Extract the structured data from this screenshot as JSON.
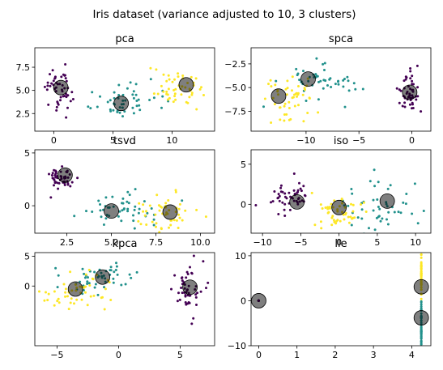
{
  "figure": {
    "title": "Iris dataset (variance adjusted to 10, 3 clusters)",
    "colors": {
      "c0": "#440154",
      "c1": "#21918c",
      "c2": "#fde725",
      "center": "#000000"
    }
  },
  "chart_data": [
    {
      "type": "scatter",
      "title": "pca",
      "xlim": [
        -1.6,
        13.6
      ],
      "ylim": [
        0.6,
        9.6
      ],
      "xticks": [
        0,
        5,
        10
      ],
      "yticks": [
        2.5,
        5.0,
        7.5
      ],
      "xtick_labels": [
        "0",
        "5",
        "10"
      ],
      "ytick_labels": [
        "2.5",
        "5.0",
        "7.5"
      ],
      "clusters": [
        {
          "center": [
            0.5,
            5.2
          ],
          "spread": [
            0.55,
            1.25
          ],
          "count": 50
        },
        {
          "center": [
            5.5,
            3.8
          ],
          "spread": [
            1.6,
            0.9
          ],
          "count": 50
        },
        {
          "center": [
            10.2,
            5.4
          ],
          "spread": [
            1.3,
            1.0
          ],
          "count": 50
        }
      ],
      "centers": [
        [
          0.6,
          5.3
        ],
        [
          5.7,
          3.6
        ],
        [
          11.2,
          5.6
        ]
      ]
    },
    {
      "type": "scatter",
      "title": "spca",
      "xlim": [
        -15.2,
        1.8
      ],
      "ylim": [
        -9.6,
        -0.8
      ],
      "xticks": [
        -10,
        -5,
        0
      ],
      "yticks": [
        -7.5,
        -5.0,
        -2.5
      ],
      "xtick_labels": [
        "−10",
        "−5",
        "0"
      ],
      "ytick_labels": [
        "−7.5",
        "−5.0",
        "−2.5"
      ],
      "clusters": [
        {
          "center": [
            -0.3,
            -5.6
          ],
          "spread": [
            0.5,
            1.2
          ],
          "count": 50
        },
        {
          "center": [
            -8.8,
            -4.6
          ],
          "spread": [
            1.6,
            0.9
          ],
          "count": 50
        },
        {
          "center": [
            -11.8,
            -6.2
          ],
          "spread": [
            1.3,
            1.1
          ],
          "count": 50
        }
      ],
      "centers": [
        [
          -0.2,
          -5.5
        ],
        [
          -9.8,
          -4.1
        ],
        [
          -12.6,
          -5.9
        ]
      ]
    },
    {
      "type": "scatter",
      "title": "tsvd",
      "xlim": [
        0.7,
        10.8
      ],
      "ylim": [
        -2.6,
        5.3
      ],
      "xticks": [
        2.5,
        5.0,
        7.5,
        10.0
      ],
      "yticks": [
        0,
        5
      ],
      "xtick_labels": [
        "2.5",
        "5.0",
        "7.5",
        "10.0"
      ],
      "ytick_labels": [
        "0",
        "5"
      ],
      "clusters": [
        {
          "center": [
            2.2,
            2.7
          ],
          "spread": [
            0.4,
            0.55
          ],
          "count": 50
        },
        {
          "center": [
            5.6,
            -0.4
          ],
          "spread": [
            1.1,
            0.8
          ],
          "count": 50
        },
        {
          "center": [
            8.2,
            -0.6
          ],
          "spread": [
            0.9,
            0.9
          ],
          "count": 50
        }
      ],
      "centers": [
        [
          2.4,
          2.9
        ],
        [
          5.0,
          -0.5
        ],
        [
          8.3,
          -0.6
        ]
      ]
    },
    {
      "type": "scatter",
      "title": "iso",
      "xlim": [
        -11.5,
        12.0
      ],
      "ylim": [
        -3.6,
        6.8
      ],
      "xticks": [
        -10,
        -5,
        0,
        5,
        10
      ],
      "yticks": [
        0,
        5
      ],
      "xtick_labels": [
        "−10",
        "−5",
        "0",
        "5",
        "10"
      ],
      "ytick_labels": [
        "0",
        "5"
      ],
      "clusters": [
        {
          "center": [
            -6.5,
            0.9
          ],
          "spread": [
            1.6,
            1.0
          ],
          "count": 50
        },
        {
          "center": [
            5.5,
            -0.4
          ],
          "spread": [
            2.3,
            1.6
          ],
          "count": 50
        },
        {
          "center": [
            -0.5,
            -0.7
          ],
          "spread": [
            1.8,
            1.1
          ],
          "count": 50
        }
      ],
      "centers": [
        [
          -5.5,
          0.3
        ],
        [
          6.3,
          0.4
        ],
        [
          0.0,
          -0.4
        ]
      ]
    },
    {
      "type": "scatter",
      "title": "kpca",
      "xlim": [
        -6.8,
        7.8
      ],
      "ylim": [
        -10.0,
        5.6
      ],
      "xticks": [
        -5,
        0,
        5
      ],
      "yticks": [
        0,
        5
      ],
      "xtick_labels": [
        "−5",
        "0",
        "5"
      ],
      "ytick_labels": [
        "0",
        "5"
      ],
      "clusters": [
        {
          "center": [
            5.6,
            -1.0
          ],
          "spread": [
            0.6,
            2.4
          ],
          "count": 50
        },
        {
          "center": [
            -1.8,
            1.4
          ],
          "spread": [
            1.4,
            1.3
          ],
          "count": 50
        },
        {
          "center": [
            -3.5,
            -1.2
          ],
          "spread": [
            1.4,
            1.7
          ],
          "count": 50
        }
      ],
      "centers": [
        [
          5.8,
          -0.2
        ],
        [
          -1.3,
          1.5
        ],
        [
          -3.5,
          -0.5
        ]
      ]
    },
    {
      "type": "scatter",
      "title": "lle",
      "xlim": [
        -0.2,
        4.5
      ],
      "ylim": [
        -10.0,
        10.7
      ],
      "xticks": [
        0,
        1,
        2,
        3,
        4
      ],
      "yticks": [
        -10,
        0,
        10
      ],
      "xtick_labels": [
        "0",
        "1",
        "2",
        "3",
        "4"
      ],
      "ytick_labels": [
        "−10",
        "0",
        "10"
      ],
      "clusters": [
        {
          "center": [
            0.0,
            0.0
          ],
          "spread": [
            0.0,
            0.0
          ],
          "count": 50
        },
        {
          "center": [
            4.25,
            -5.0
          ],
          "spread": [
            0.0,
            2.5
          ],
          "count": 50
        },
        {
          "center": [
            4.25,
            5.5
          ],
          "spread": [
            0.0,
            2.5
          ],
          "count": 50
        }
      ],
      "centers": [
        [
          0.0,
          0.0
        ],
        [
          4.25,
          -3.8
        ],
        [
          4.25,
          3.1
        ]
      ]
    }
  ]
}
